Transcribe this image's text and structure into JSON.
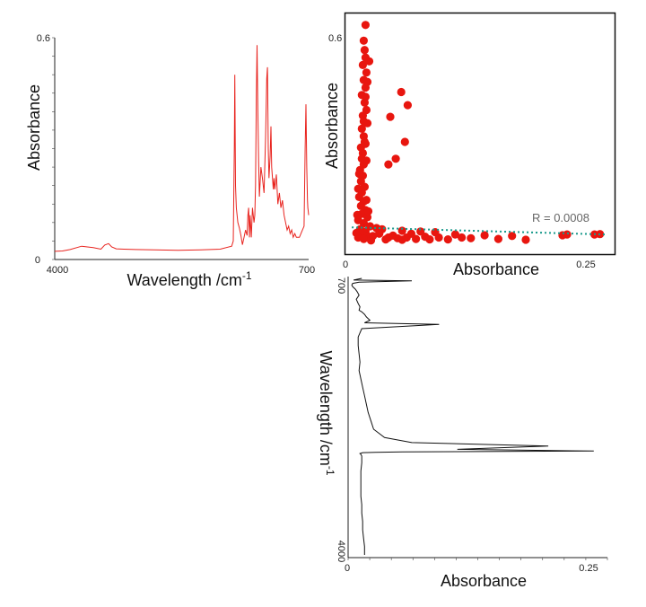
{
  "chart_data": [
    {
      "id": "spectrum-top",
      "type": "line",
      "xlabel": "Wavelength /cm",
      "xlabel_sup": "-1",
      "ylabel": "Absorbance",
      "xlim": [
        4000,
        700
      ],
      "ylim": [
        0,
        0.6
      ],
      "x_ticks": [
        "4000",
        "700"
      ],
      "y_ticks": [
        "0",
        "0.6"
      ],
      "color": "#e8231e",
      "grid": false,
      "series": [
        {
          "x": [
            4000,
            3900,
            3800,
            3650,
            3500,
            3400,
            3350,
            3300,
            3260,
            3200,
            3100,
            2950,
            2700,
            2400,
            2100,
            1850,
            1700,
            1680,
            1665,
            1660,
            1650,
            1640,
            1620,
            1600,
            1580,
            1560,
            1540,
            1520,
            1500,
            1490,
            1480,
            1470,
            1460,
            1445,
            1430,
            1410,
            1400,
            1390,
            1380,
            1370,
            1360,
            1350,
            1340,
            1320,
            1300,
            1280,
            1260,
            1245,
            1235,
            1225,
            1215,
            1200,
            1190,
            1180,
            1160,
            1150,
            1140,
            1120,
            1100,
            1080,
            1060,
            1040,
            1020,
            1000,
            980,
            960,
            940,
            920,
            900,
            880,
            860,
            840,
            820,
            800,
            780,
            760,
            745,
            735,
            725,
            715,
            710,
            705,
            700
          ],
          "y": [
            0.022,
            0.023,
            0.027,
            0.036,
            0.032,
            0.028,
            0.039,
            0.043,
            0.034,
            0.029,
            0.028,
            0.027,
            0.026,
            0.025,
            0.026,
            0.028,
            0.036,
            0.05,
            0.31,
            0.5,
            0.2,
            0.14,
            0.1,
            0.085,
            0.065,
            0.04,
            0.06,
            0.08,
            0.065,
            0.12,
            0.14,
            0.06,
            0.12,
            0.06,
            0.14,
            0.1,
            0.12,
            0.2,
            0.44,
            0.58,
            0.4,
            0.26,
            0.17,
            0.25,
            0.22,
            0.18,
            0.33,
            0.49,
            0.52,
            0.3,
            0.22,
            0.28,
            0.36,
            0.25,
            0.19,
            0.22,
            0.19,
            0.23,
            0.15,
            0.18,
            0.14,
            0.16,
            0.12,
            0.1,
            0.08,
            0.09,
            0.07,
            0.08,
            0.06,
            0.07,
            0.06,
            0.06,
            0.06,
            0.07,
            0.08,
            0.09,
            0.3,
            0.42,
            0.25,
            0.16,
            0.14,
            0.13,
            0.12
          ]
        }
      ]
    },
    {
      "id": "correlation-scatter",
      "type": "scatter",
      "xlabel": "Absorbance",
      "ylabel": "Absorbance",
      "xlim": [
        0,
        0.29
      ],
      "ylim": [
        0,
        0.63
      ],
      "x_ticks": [
        "0",
        "0.25"
      ],
      "y_ticks": [
        "0.6"
      ],
      "color": "#e8160f",
      "trend_color": "#1a9a8c",
      "annotation": "R = 0.0008",
      "grid": false,
      "trendline": {
        "x": [
          0.005,
          0.282
        ],
        "y": [
          0.057,
          0.038
        ]
      },
      "points": [
        [
          0.02,
          0.597
        ],
        [
          0.018,
          0.555
        ],
        [
          0.019,
          0.53
        ],
        [
          0.02,
          0.51
        ],
        [
          0.017,
          0.49
        ],
        [
          0.021,
          0.47
        ],
        [
          0.018,
          0.45
        ],
        [
          0.02,
          0.43
        ],
        [
          0.016,
          0.41
        ],
        [
          0.019,
          0.39
        ],
        [
          0.021,
          0.37
        ],
        [
          0.017,
          0.355
        ],
        [
          0.018,
          0.34
        ],
        [
          0.016,
          0.32
        ],
        [
          0.018,
          0.3
        ],
        [
          0.019,
          0.285
        ],
        [
          0.015,
          0.27
        ],
        [
          0.017,
          0.255
        ],
        [
          0.016,
          0.24
        ],
        [
          0.018,
          0.225
        ],
        [
          0.014,
          0.21
        ],
        [
          0.017,
          0.195
        ],
        [
          0.015,
          0.18
        ],
        [
          0.019,
          0.165
        ],
        [
          0.016,
          0.15
        ],
        [
          0.013,
          0.138
        ],
        [
          0.018,
          0.126
        ],
        [
          0.015,
          0.114
        ],
        [
          0.02,
          0.103
        ],
        [
          0.016,
          0.093
        ],
        [
          0.022,
          0.084
        ],
        [
          0.012,
          0.076
        ],
        [
          0.018,
          0.068
        ],
        [
          0.025,
          0.06
        ],
        [
          0.014,
          0.052
        ],
        [
          0.02,
          0.046
        ],
        [
          0.01,
          0.042
        ],
        [
          0.016,
          0.038
        ],
        [
          0.022,
          0.034
        ],
        [
          0.012,
          0.03
        ],
        [
          0.018,
          0.026
        ],
        [
          0.026,
          0.022
        ],
        [
          0.024,
          0.5
        ],
        [
          0.022,
          0.445
        ],
        [
          0.02,
          0.405
        ],
        [
          0.022,
          0.335
        ],
        [
          0.02,
          0.28
        ],
        [
          0.021,
          0.235
        ],
        [
          0.013,
          0.2
        ],
        [
          0.012,
          0.16
        ],
        [
          0.021,
          0.13
        ],
        [
          0.023,
          0.1
        ],
        [
          0.011,
          0.09
        ],
        [
          0.047,
          0.352
        ],
        [
          0.059,
          0.418
        ],
        [
          0.066,
          0.383
        ],
        [
          0.053,
          0.24
        ],
        [
          0.045,
          0.225
        ],
        [
          0.063,
          0.285
        ],
        [
          0.032,
          0.055
        ],
        [
          0.035,
          0.04
        ],
        [
          0.042,
          0.025
        ],
        [
          0.038,
          0.052
        ],
        [
          0.05,
          0.035
        ],
        [
          0.055,
          0.028
        ],
        [
          0.06,
          0.048
        ],
        [
          0.065,
          0.03
        ],
        [
          0.07,
          0.04
        ],
        [
          0.075,
          0.026
        ],
        [
          0.08,
          0.046
        ],
        [
          0.085,
          0.032
        ],
        [
          0.09,
          0.025
        ],
        [
          0.096,
          0.044
        ],
        [
          0.1,
          0.03
        ],
        [
          0.11,
          0.025
        ],
        [
          0.118,
          0.038
        ],
        [
          0.125,
          0.03
        ],
        [
          0.135,
          0.028
        ],
        [
          0.15,
          0.036
        ],
        [
          0.165,
          0.026
        ],
        [
          0.18,
          0.034
        ],
        [
          0.195,
          0.024
        ],
        [
          0.235,
          0.036
        ],
        [
          0.24,
          0.038
        ],
        [
          0.27,
          0.038
        ],
        [
          0.276,
          0.039
        ],
        [
          0.06,
          0.024
        ],
        [
          0.045,
          0.03
        ],
        [
          0.028,
          0.034
        ]
      ]
    },
    {
      "id": "spectrum-rotated",
      "type": "line",
      "orientation": "vertical",
      "xlabel": "Absorbance",
      "ylabel": "Wavelength /cm",
      "ylabel_sup": "-1",
      "xlim": [
        0,
        0.285
      ],
      "ylim": [
        700,
        4000
      ],
      "x_ticks": [
        "0",
        "0.25"
      ],
      "y_ticks": [
        "700",
        "4000"
      ],
      "color": "#111111",
      "grid": false,
      "series": [
        {
          "wavenumber": [
            700,
            720,
            730,
            745,
            760,
            780,
            800,
            830,
            860,
            900,
            950,
            1000,
            1040,
            1080,
            1100,
            1130,
            1160,
            1200,
            1230,
            1250,
            1300,
            1400,
            1500,
            1600,
            1700,
            1800,
            1900,
            2000,
            2100,
            2200,
            2300,
            2400,
            2500,
            2600,
            2660,
            2700,
            2740,
            2760,
            2770,
            2775,
            2780,
            2790,
            2800,
            2820,
            2860,
            2900,
            3000,
            3100,
            3200,
            3300,
            3400,
            3500,
            3600,
            3700,
            3800,
            3900,
            4000
          ],
          "absorbance": [
            0.015,
            0.006,
            0.07,
            0.012,
            0.005,
            0.004,
            0.005,
            0.008,
            0.01,
            0.012,
            0.009,
            0.011,
            0.013,
            0.012,
            0.015,
            0.018,
            0.02,
            0.024,
            0.018,
            0.1,
            0.015,
            0.011,
            0.011,
            0.012,
            0.013,
            0.012,
            0.014,
            0.016,
            0.018,
            0.02,
            0.022,
            0.025,
            0.028,
            0.04,
            0.07,
            0.22,
            0.12,
            0.27,
            0.06,
            0.03,
            0.016,
            0.013,
            0.014,
            0.015,
            0.015,
            0.015,
            0.014,
            0.014,
            0.014,
            0.014,
            0.015,
            0.015,
            0.016,
            0.016,
            0.017,
            0.018,
            0.018
          ]
        }
      ]
    }
  ]
}
